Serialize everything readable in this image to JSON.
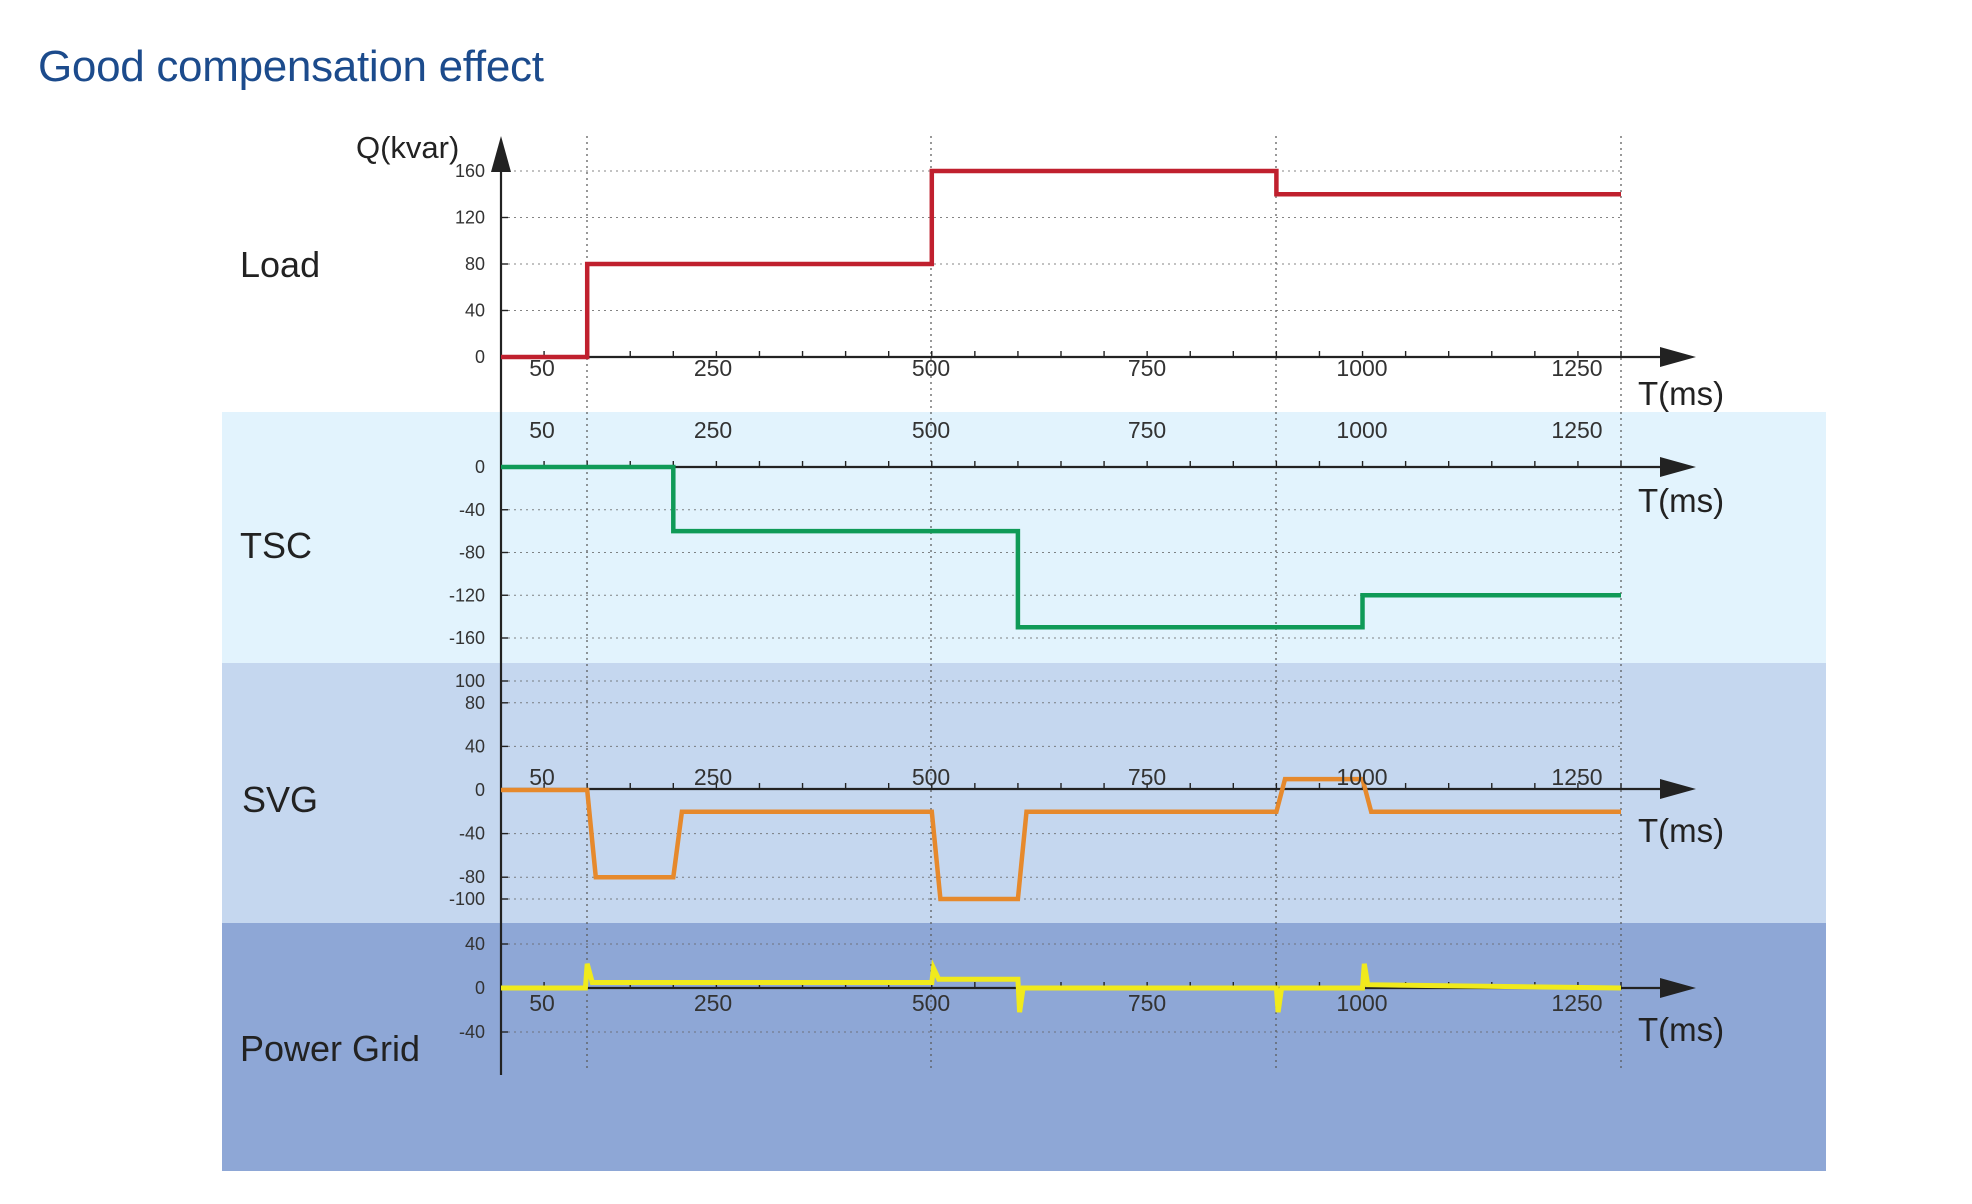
{
  "page": {
    "title": "Good compensation effect"
  },
  "colors": {
    "load_line": "#c0202e",
    "tsc_line": "#0f9a57",
    "svg_line": "#e6892c",
    "grid_line": "#f0ea1c",
    "tsc_band": "#e2f3fd",
    "svg_band": "#c5d7ef",
    "grid_band": "#8ea7d6",
    "axis": "#222222"
  },
  "chart_data": [
    {
      "panel": "Load",
      "type": "line",
      "row_label": "Load",
      "ylabel": "Q(kvar)",
      "xlabel": "T(ms)",
      "x_ticks": [
        "50",
        "250",
        "500",
        "750",
        "1000",
        "1250"
      ],
      "y_ticks": [
        "160",
        "120",
        "80",
        "40",
        "0"
      ],
      "ylim": [
        0,
        160
      ],
      "xlim": [
        0,
        1300
      ],
      "series": [
        {
          "x": [
            0,
            100,
            100,
            500,
            500,
            900,
            900,
            1300
          ],
          "y": [
            0,
            0,
            80,
            80,
            160,
            160,
            140,
            140
          ]
        }
      ]
    },
    {
      "panel": "TSC",
      "type": "line",
      "row_label": "TSC",
      "xlabel": "T(ms)",
      "x_ticks": [
        "50",
        "250",
        "500",
        "750",
        "1000",
        "1250"
      ],
      "y_ticks": [
        "0",
        "-40",
        "-80",
        "-120",
        "-160"
      ],
      "ylim": [
        -160,
        0
      ],
      "xlim": [
        0,
        1300
      ],
      "series": [
        {
          "x": [
            0,
            200,
            200,
            600,
            600,
            1000,
            1000,
            1300
          ],
          "y": [
            0,
            0,
            -60,
            -60,
            -150,
            -150,
            -120,
            -120
          ]
        }
      ]
    },
    {
      "panel": "SVG",
      "type": "line",
      "row_label": "SVG",
      "xlabel": "T(ms)",
      "x_ticks": [
        "50",
        "250",
        "500",
        "750",
        "1000",
        "1250"
      ],
      "y_ticks": [
        "100",
        "80",
        "40",
        "0",
        "-40",
        "-80",
        "-100"
      ],
      "ylim": [
        -100,
        100
      ],
      "xlim": [
        0,
        1300
      ],
      "series": [
        {
          "x": [
            0,
            100,
            110,
            200,
            210,
            500,
            510,
            600,
            610,
            900,
            910,
            1000,
            1010,
            1300
          ],
          "y": [
            0,
            0,
            -80,
            -80,
            -20,
            -20,
            -100,
            -100,
            -20,
            -20,
            10,
            10,
            -20,
            -20
          ]
        }
      ]
    },
    {
      "panel": "Power Grid",
      "type": "line",
      "row_label": "Power Grid",
      "xlabel": "T(ms)",
      "x_ticks": [
        "50",
        "250",
        "500",
        "750",
        "1000",
        "1250"
      ],
      "y_ticks": [
        "40",
        "0",
        "-40"
      ],
      "ylim": [
        -40,
        40
      ],
      "xlim": [
        0,
        1300
      ],
      "series": [
        {
          "x": [
            0,
            98,
            100,
            106,
            500,
            502,
            508,
            600,
            602,
            606,
            900,
            902,
            906,
            1000,
            1002,
            1006,
            1300
          ],
          "y": [
            0,
            0,
            22,
            5,
            5,
            18,
            8,
            8,
            -22,
            0,
            0,
            -22,
            0,
            0,
            22,
            3,
            0
          ]
        }
      ]
    }
  ]
}
